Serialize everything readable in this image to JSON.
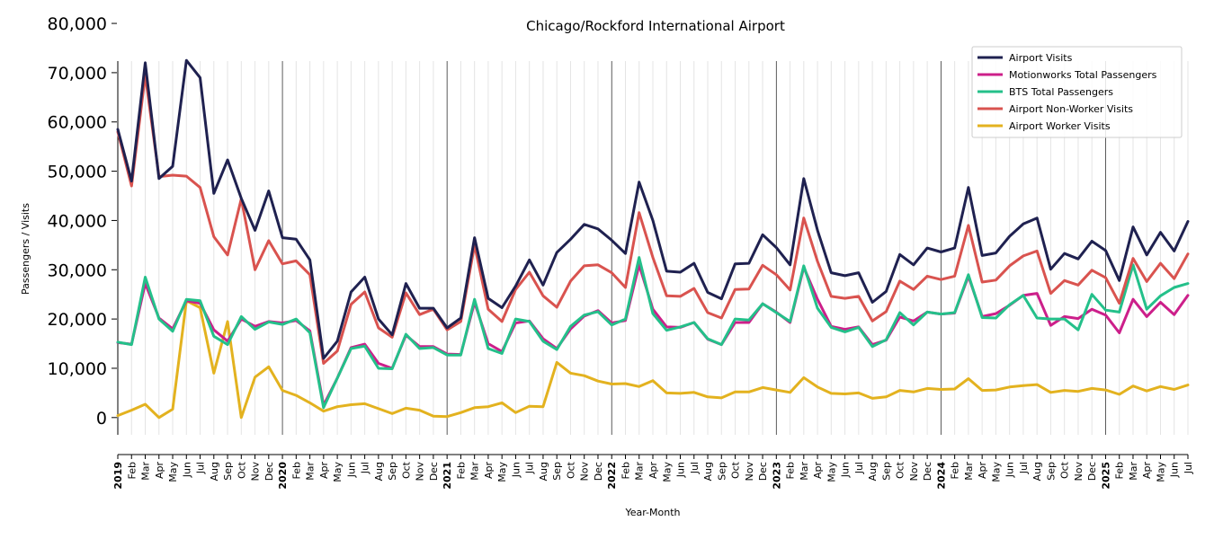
{
  "chart_data": {
    "type": "line",
    "title": "Chicago/Rockford International Airport",
    "xlabel": "Year-Month",
    "ylabel": "Passengers / Visits",
    "ylim": [
      -3500,
      76000
    ],
    "yticks": [
      0,
      10000,
      20000,
      30000,
      40000,
      50000,
      60000,
      70000,
      80000
    ],
    "ytick_labels": [
      "0",
      "10,000",
      "20,000",
      "30,000",
      "40,000",
      "50,000",
      "60,000",
      "70,000",
      "80,000"
    ],
    "grid": "vertical",
    "legend_position": "top-right",
    "x": [
      "2019",
      "Feb",
      "Mar",
      "Apr",
      "May",
      "Jun",
      "Jul",
      "Aug",
      "Sep",
      "Oct",
      "Nov",
      "Dec",
      "2020",
      "Feb",
      "Mar",
      "Apr",
      "May",
      "Jun",
      "Jul",
      "Aug",
      "Sep",
      "Oct",
      "Nov",
      "Dec",
      "2021",
      "Feb",
      "Mar",
      "Apr",
      "May",
      "Jun",
      "Jul",
      "Aug",
      "Sep",
      "Oct",
      "Nov",
      "Dec",
      "2022",
      "Feb",
      "Mar",
      "Apr",
      "May",
      "Jun",
      "Jul",
      "Aug",
      "Sep",
      "Oct",
      "Nov",
      "Dec",
      "2023",
      "Feb",
      "Mar",
      "Apr",
      "May",
      "Jun",
      "Jul",
      "Aug",
      "Sep",
      "Oct",
      "Nov",
      "Dec",
      "2024",
      "Feb",
      "Mar",
      "Apr",
      "May",
      "Jun",
      "Jul",
      "Aug",
      "Sep",
      "Oct",
      "Nov",
      "Dec",
      "2025",
      "Feb",
      "Mar",
      "Apr",
      "May",
      "Jun",
      "Jul"
    ],
    "series": [
      {
        "name": "Airport Visits",
        "color": "#1f2150",
        "values": [
          58500,
          48000,
          72000,
          48500,
          51000,
          72500,
          69000,
          45500,
          52300,
          44500,
          38000,
          46000,
          36500,
          36200,
          32000,
          12000,
          15500,
          25500,
          28500,
          20000,
          16800,
          27200,
          22200,
          22200,
          18200,
          20200,
          36500,
          24200,
          22300,
          26700,
          32000,
          26900,
          33500,
          36200,
          39200,
          38300,
          36000,
          33300,
          47800,
          40000,
          29700,
          29500,
          31300,
          25400,
          24100,
          31200,
          31300,
          37100,
          34500,
          31000,
          48500,
          38000,
          29400,
          28800,
          29400,
          23400,
          25600,
          33100,
          31000,
          34400,
          33600,
          34400,
          46700,
          32900,
          33400,
          36800,
          39300,
          40500,
          30100,
          33300,
          32200,
          35800,
          33900,
          27800,
          38700,
          33000,
          37600,
          33800,
          39800
        ]
      },
      {
        "name": "Motionworks Total Passengers",
        "color": "#cc1f8a",
        "values": [
          15200,
          14900,
          27200,
          20200,
          18000,
          23700,
          23200,
          17800,
          15500,
          20000,
          18500,
          19500,
          19200,
          19700,
          17600,
          2500,
          8000,
          14200,
          14900,
          11000,
          10000,
          16700,
          14400,
          14400,
          12900,
          12800,
          23400,
          15000,
          13400,
          19200,
          19600,
          16000,
          14000,
          18000,
          20600,
          21700,
          19200,
          19700,
          31000,
          22000,
          18400,
          18300,
          19300,
          15900,
          14800,
          19300,
          19300,
          23100,
          21400,
          19300,
          30500,
          24000,
          18500,
          17900,
          18400,
          14800,
          15700,
          20400,
          19600,
          21400,
          21000,
          21200,
          28700,
          20500,
          21100,
          22800,
          24800,
          25200,
          18700,
          20500,
          20100,
          22000,
          20800,
          17200,
          24000,
          20500,
          23400,
          20900,
          24800
        ]
      },
      {
        "name": "BTS Total Passengers",
        "color": "#24c08a",
        "values": [
          15300,
          14800,
          28500,
          20000,
          17500,
          24000,
          23700,
          16500,
          14800,
          20500,
          17900,
          19400,
          18900,
          20000,
          17200,
          2000,
          8000,
          14000,
          14500,
          10000,
          9900,
          16900,
          14000,
          14200,
          12700,
          12700,
          24000,
          14000,
          13000,
          20000,
          19500,
          15500,
          13800,
          18500,
          20800,
          21500,
          18800,
          20000,
          32500,
          21100,
          17700,
          18400,
          19300,
          16000,
          14800,
          20000,
          19800,
          23100,
          21300,
          19500,
          30800,
          22200,
          18300,
          17400,
          18300,
          14400,
          15800,
          21300,
          18800,
          21400,
          21000,
          21300,
          29000,
          20300,
          20200,
          22900,
          24800,
          20200,
          20000,
          20000,
          17800,
          25000,
          21800,
          21400,
          31000,
          22000,
          24700,
          26400,
          27200
        ]
      },
      {
        "name": "Airport Non-Worker Visits",
        "color": "#d9534f",
        "values": [
          58000,
          47000,
          69500,
          48900,
          49200,
          49000,
          46700,
          36700,
          33000,
          44400,
          30000,
          35900,
          31200,
          31800,
          29000,
          11000,
          13500,
          23000,
          25500,
          18200,
          16300,
          25300,
          20900,
          22000,
          17800,
          19500,
          35000,
          22000,
          19500,
          26000,
          29500,
          24700,
          22400,
          27700,
          30800,
          31000,
          29400,
          26400,
          41600,
          32500,
          24700,
          24600,
          26200,
          21300,
          20200,
          26000,
          26100,
          30900,
          29000,
          25900,
          40500,
          31700,
          24600,
          24200,
          24600,
          19600,
          21500,
          27700,
          26000,
          28700,
          28000,
          28700,
          39000,
          27500,
          27900,
          30800,
          32800,
          33800,
          25200,
          27800,
          26900,
          29900,
          28400,
          23200,
          32300,
          27600,
          31300,
          28200,
          33200
        ]
      },
      {
        "name": "Airport Worker Visits",
        "color": "#e3b21f",
        "values": [
          400,
          1500,
          2700,
          0,
          1700,
          23700,
          22300,
          9000,
          19500,
          0,
          8200,
          10300,
          5500,
          4500,
          3000,
          1300,
          2200,
          2600,
          2800,
          1800,
          800,
          1900,
          1500,
          300,
          200,
          1000,
          2000,
          2200,
          3000,
          1000,
          2300,
          2200,
          11200,
          9000,
          8500,
          7400,
          6800,
          6900,
          6300,
          7500,
          5000,
          4900,
          5100,
          4200,
          4000,
          5200,
          5200,
          6100,
          5600,
          5100,
          8100,
          6200,
          4900,
          4800,
          5000,
          3900,
          4200,
          5500,
          5200,
          5900,
          5700,
          5800,
          7900,
          5500,
          5600,
          6200,
          6500,
          6700,
          5100,
          5500,
          5300,
          5900,
          5600,
          4700,
          6400,
          5400,
          6300,
          5700,
          6600
        ]
      }
    ]
  }
}
